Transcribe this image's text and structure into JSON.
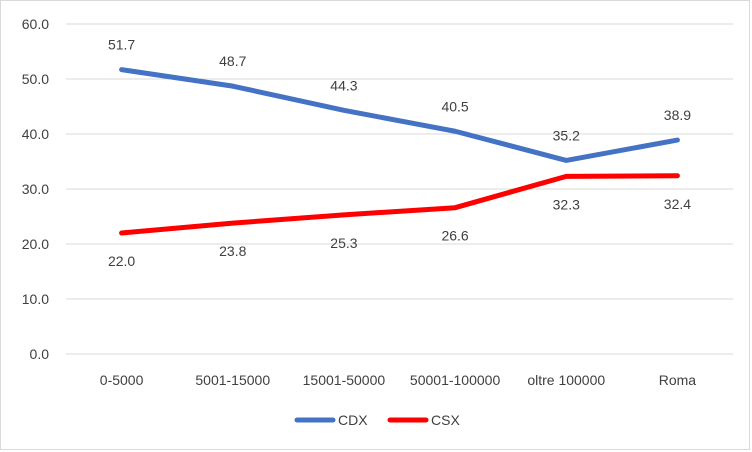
{
  "chart_data": {
    "type": "line",
    "categories": [
      "0-5000",
      "5001-15000",
      "15001-50000",
      "50001-100000",
      "oltre 100000",
      "Roma"
    ],
    "series": [
      {
        "name": "CDX",
        "color": "#4472C4",
        "values": [
          51.7,
          48.7,
          44.3,
          40.5,
          35.2,
          38.9
        ]
      },
      {
        "name": "CSX",
        "color": "#FF0000",
        "values": [
          22.0,
          23.8,
          25.3,
          26.6,
          32.3,
          32.4
        ]
      }
    ],
    "y_ticks": [
      "0.0",
      "10.0",
      "20.0",
      "30.0",
      "40.0",
      "50.0",
      "60.0"
    ],
    "ylim": [
      0,
      60
    ],
    "grid": true,
    "legend_position": "bottom",
    "data_label_decimals": 1,
    "gridline_color": "#d9d9d9"
  }
}
